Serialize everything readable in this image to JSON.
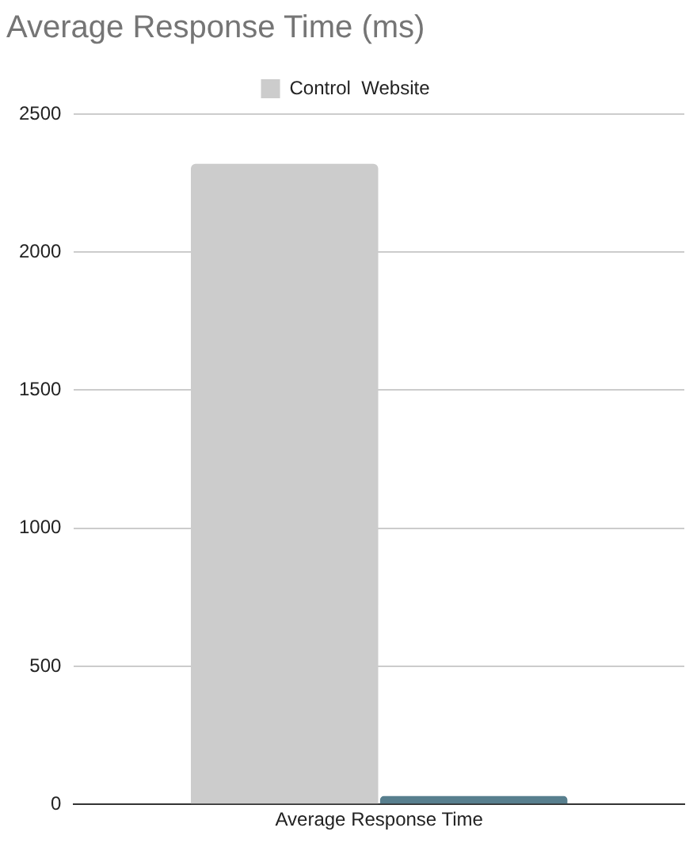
{
  "chart_data": {
    "type": "bar",
    "title": "Average Response Time (ms)",
    "categories": [
      "Average Response Time"
    ],
    "series": [
      {
        "name": "Control  Website",
        "color": "#cccccc",
        "values": [
          2320
        ]
      },
      {
        "color": "#587f8e",
        "values": [
          30
        ]
      }
    ],
    "ylim": [
      0,
      2500
    ],
    "yticks": [
      0,
      500,
      1000,
      1500,
      2000,
      2500
    ],
    "grid": "y",
    "legend": "top"
  }
}
